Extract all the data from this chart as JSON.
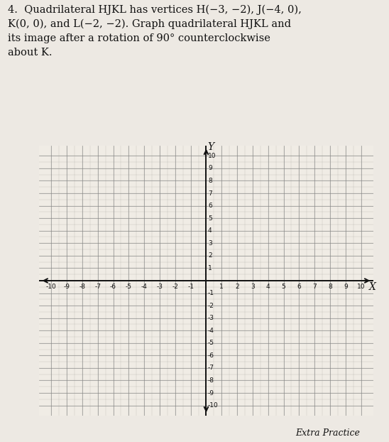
{
  "title_text": "4.  Quadrilateral HJKL has vertices H(−3, −2), J(−4, 0),\nK(0, 0), and L(−2, −2). Graph quadrilateral HJKL and\nits image after a rotation of 90° counterclockwise\nabout K.",
  "footer": "Extra Practice",
  "xmin": -10,
  "xmax": 10,
  "ymin": -10,
  "ymax": 10,
  "xlabel": "X",
  "ylabel": "Y",
  "bg_color": "#ede9e3",
  "grid_color": "#888888",
  "axis_color": "#111111",
  "text_color": "#111111",
  "font_size_title": 10.5,
  "font_size_tick": 6.5,
  "font_size_axlabel": 10
}
